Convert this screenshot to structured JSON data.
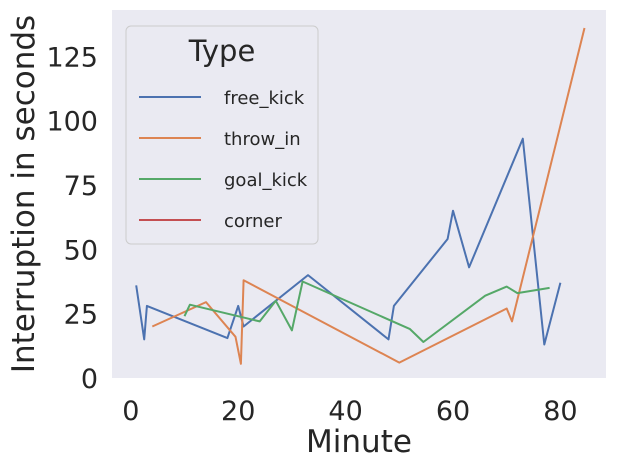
{
  "chart_data": {
    "type": "line",
    "xlabel": "Minute",
    "ylabel": "Interruption in seconds",
    "xlim": [
      -3.5,
      88.5
    ],
    "ylim": [
      0,
      143
    ],
    "xticks": [
      0,
      20,
      40,
      60,
      80
    ],
    "yticks": [
      0,
      25,
      50,
      75,
      100,
      125
    ],
    "grid": false,
    "legend": {
      "title": "Type",
      "position": "top-left"
    },
    "series": [
      {
        "name": "free_kick",
        "color": "#4c72b0",
        "x": [
          1,
          2.5,
          3,
          18,
          20,
          21,
          33,
          48,
          49,
          59,
          60,
          63,
          73,
          77,
          80
        ],
        "y": [
          36,
          15,
          28,
          15.5,
          28,
          20,
          40,
          15,
          28,
          54,
          65,
          43,
          93,
          13,
          37
        ]
      },
      {
        "name": "throw_in",
        "color": "#dd8452",
        "x": [
          4,
          14,
          19.5,
          20.5,
          21,
          50,
          70,
          71,
          84.5
        ],
        "y": [
          20,
          29.5,
          16,
          5.5,
          38,
          6,
          27,
          22,
          136
        ]
      },
      {
        "name": "goal_kick",
        "color": "#55a868",
        "x": [
          10,
          11,
          24,
          27,
          30,
          32,
          52,
          54.5,
          66,
          70,
          72,
          78
        ],
        "y": [
          24,
          28.5,
          22,
          30,
          18.5,
          37.5,
          19,
          14,
          32,
          35.5,
          33,
          35
        ]
      },
      {
        "name": "corner",
        "color": "#c44e52",
        "x": [],
        "y": []
      }
    ]
  }
}
